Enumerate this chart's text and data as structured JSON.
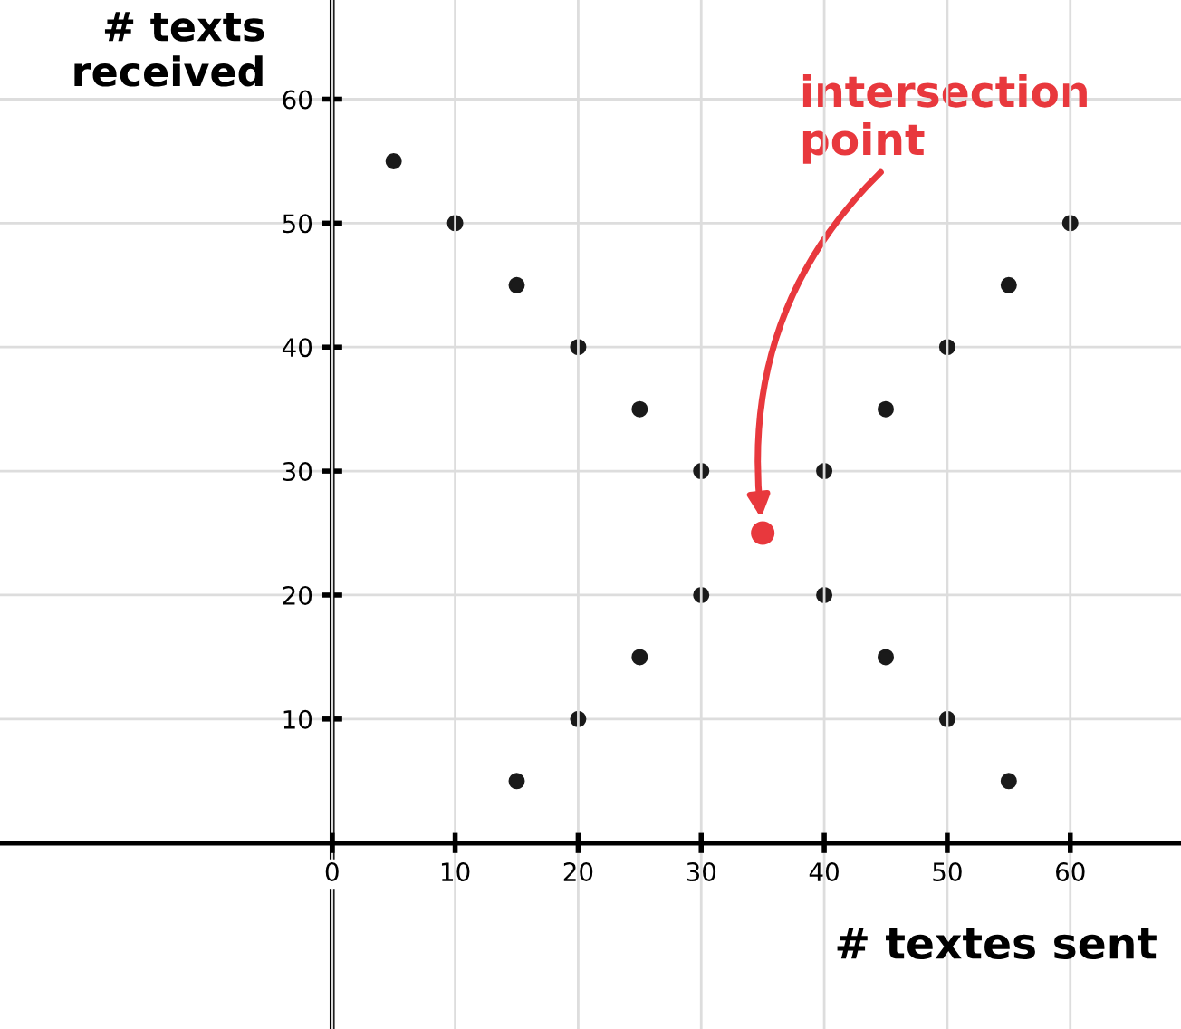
{
  "chart_data": {
    "type": "scatter",
    "xlabel": "# textes sent",
    "ylabel": "# texts received",
    "series": [
      {
        "color": "#1a1a1a",
        "x": [
          5,
          10,
          15,
          20,
          25,
          30,
          40,
          45,
          50,
          55
        ],
        "values": [
          55,
          50,
          45,
          40,
          35,
          30,
          20,
          15,
          10,
          5
        ]
      },
      {
        "color": "#1a1a1a",
        "x": [
          15,
          20,
          25,
          30,
          40,
          45,
          50,
          55,
          60
        ],
        "values": [
          5,
          10,
          15,
          20,
          30,
          35,
          40,
          45,
          50
        ]
      },
      {
        "color": "#e8383d",
        "x": [
          35
        ],
        "values": [
          25
        ]
      }
    ],
    "annotations": [
      "intersection point"
    ],
    "xlim": [
      -27,
      69
    ],
    "ylim": [
      -15,
      68
    ],
    "xticks": [
      0,
      10,
      20,
      30,
      40,
      50,
      60
    ],
    "yticks": [
      10,
      20,
      30,
      40,
      50,
      60
    ],
    "grid": true,
    "marker": "circle"
  }
}
